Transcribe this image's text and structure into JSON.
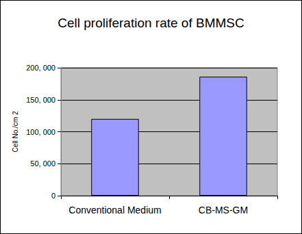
{
  "chart_data": {
    "type": "bar",
    "title": "Cell proliferation rate of BMMSC",
    "y_label": "Cell No./cm 2",
    "categories": [
      "Conventional Medium",
      "CB-MS-GM"
    ],
    "values": [
      120000,
      186000
    ],
    "color": "#9999ff",
    "ylim": [
      0,
      200000
    ],
    "yticks": [
      0,
      {
        "value": 50000,
        "label": "50, 000"
      },
      {
        "value": 100000,
        "label": "100, 000"
      },
      {
        "value": 150000,
        "label": "150, 000"
      },
      {
        "value": 200000,
        "label": "200, 000"
      }
    ],
    "grid": true
  }
}
